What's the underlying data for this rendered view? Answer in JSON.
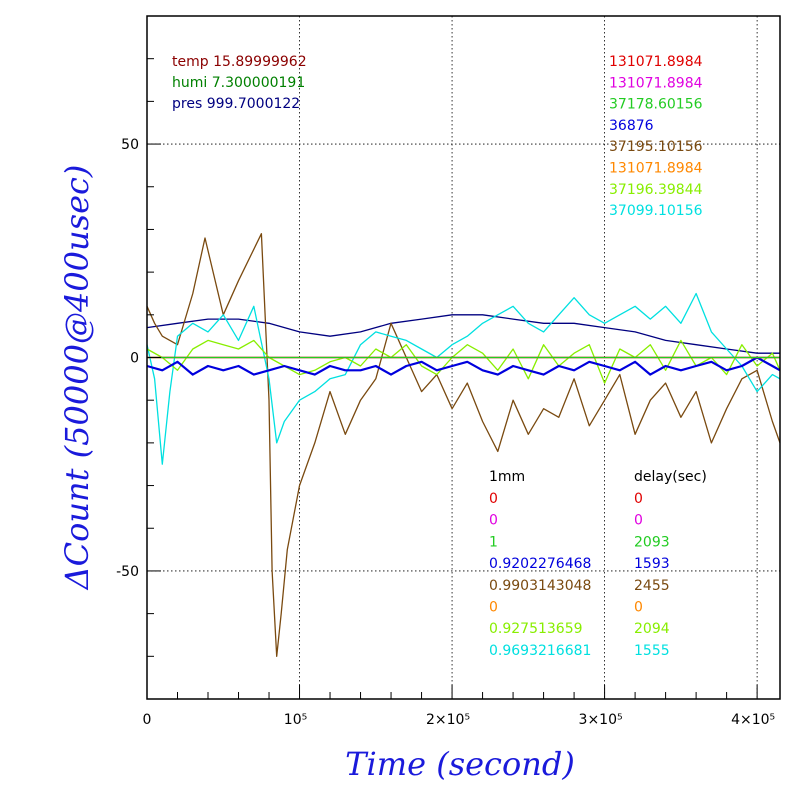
{
  "chart_data": {
    "type": "line",
    "xlabel": "Time (second)",
    "ylabel": "ΔCount (50000@400usec)",
    "xlim": [
      0,
      415000
    ],
    "ylim": [
      -80,
      80
    ],
    "x_ticks": [
      {
        "value": 0,
        "label": "0"
      },
      {
        "value": 100000,
        "label": "10⁵"
      },
      {
        "value": 200000,
        "label": "2×10⁵"
      },
      {
        "value": 300000,
        "label": "3×10⁵"
      },
      {
        "value": 400000,
        "label": "4×10⁵"
      }
    ],
    "y_ticks": [
      {
        "value": 50,
        "label": "50"
      },
      {
        "value": 0,
        "label": "0"
      },
      {
        "value": -50,
        "label": "-50"
      }
    ],
    "grid": true,
    "env": [
      {
        "text": "temp 15.89999962",
        "color": "#8b0000"
      },
      {
        "text": "humi 7.300000191",
        "color": "#008000"
      },
      {
        "text": "pres 999.7000122",
        "color": "#000080"
      }
    ],
    "header_values": [
      {
        "text": "131071.8984",
        "color": "#e00000"
      },
      {
        "text": "131071.8984",
        "color": "#e000e0"
      },
      {
        "text": "37178.60156",
        "color": "#22cc22"
      },
      {
        "text": "36876",
        "color": "#0000dd"
      },
      {
        "text": "37195.10156",
        "color": "#7a4a10"
      },
      {
        "text": "131071.8984",
        "color": "#ff8800"
      },
      {
        "text": "37196.39844",
        "color": "#88ee00"
      },
      {
        "text": "37099.10156",
        "color": "#00e0e0"
      }
    ],
    "table": {
      "col1_header": "1mm",
      "col2_header": "delay(sec)",
      "rows": [
        {
          "col1": "0",
          "col2": "0",
          "color": "#e00000"
        },
        {
          "col1": "0",
          "col2": "0",
          "color": "#e000e0"
        },
        {
          "col1": "1",
          "col2": "2093",
          "color": "#22cc22"
        },
        {
          "col1": "0.9202276468",
          "col2": "1593",
          "color": "#0000dd"
        },
        {
          "col1": "0.9903143048",
          "col2": "2455",
          "color": "#7a4a10"
        },
        {
          "col1": "0",
          "col2": "0",
          "color": "#ff8800"
        },
        {
          "col1": "0.927513659",
          "col2": "2094",
          "color": "#88ee00"
        },
        {
          "col1": "0.9693216681",
          "col2": "1555",
          "color": "#00e0e0"
        }
      ]
    },
    "series": [
      {
        "color": "#8b0000",
        "x": [
          0,
          15000,
          30000,
          45000,
          60000,
          75000,
          90000,
          105000,
          120000,
          135000,
          150000,
          165000,
          180000,
          195000,
          210000,
          225000,
          240000,
          255000,
          270000,
          285000,
          300000,
          315000,
          330000,
          345000,
          360000,
          375000,
          390000,
          405000,
          415000
        ],
        "y": [
          0,
          0,
          0,
          0,
          0,
          0,
          0,
          0,
          0,
          0,
          0,
          0,
          0,
          0,
          0,
          0,
          0,
          0,
          0,
          0,
          0,
          0,
          0,
          0,
          0,
          0,
          0,
          0,
          0
        ]
      },
      {
        "color": "#000080",
        "x": [
          0,
          20000,
          40000,
          60000,
          80000,
          100000,
          120000,
          140000,
          160000,
          180000,
          200000,
          220000,
          240000,
          260000,
          280000,
          300000,
          320000,
          340000,
          360000,
          380000,
          400000,
          415000
        ],
        "y": [
          7,
          8,
          9,
          9,
          8,
          6,
          5,
          6,
          8,
          9,
          10,
          10,
          9,
          8,
          8,
          7,
          6,
          4,
          3,
          2,
          1,
          1
        ]
      },
      {
        "color": "#7a4a10",
        "x": [
          0,
          5000,
          10000,
          20000,
          30000,
          38000,
          42000,
          50000,
          60000,
          75000,
          80000,
          82000,
          85000,
          88000,
          92000,
          100000,
          110000,
          120000,
          130000,
          140000,
          150000,
          160000,
          170000,
          180000,
          190000,
          200000,
          210000,
          220000,
          230000,
          240000,
          250000,
          260000,
          270000,
          280000,
          290000,
          300000,
          310000,
          320000,
          330000,
          340000,
          350000,
          360000,
          370000,
          380000,
          390000,
          400000,
          410000,
          415000
        ],
        "y": [
          12,
          8,
          5,
          3,
          15,
          28,
          22,
          10,
          18,
          29,
          -10,
          -50,
          -70,
          -60,
          -45,
          -30,
          -20,
          -8,
          -18,
          -10,
          -5,
          8,
          0,
          -8,
          -4,
          -12,
          -6,
          -15,
          -22,
          -10,
          -18,
          -12,
          -14,
          -5,
          -16,
          -10,
          -4,
          -18,
          -10,
          -6,
          -14,
          -8,
          -20,
          -12,
          -5,
          -3,
          -15,
          -20
        ]
      },
      {
        "color": "#00e0e0",
        "x": [
          0,
          5000,
          10000,
          15000,
          20000,
          30000,
          40000,
          50000,
          60000,
          70000,
          80000,
          85000,
          90000,
          100000,
          110000,
          120000,
          130000,
          140000,
          150000,
          160000,
          170000,
          180000,
          190000,
          200000,
          210000,
          220000,
          230000,
          240000,
          250000,
          260000,
          270000,
          280000,
          290000,
          300000,
          310000,
          320000,
          330000,
          340000,
          350000,
          360000,
          370000,
          380000,
          390000,
          400000,
          410000,
          415000
        ],
        "y": [
          3,
          -5,
          -25,
          -8,
          5,
          8,
          6,
          10,
          4,
          12,
          -5,
          -20,
          -15,
          -10,
          -8,
          -5,
          -4,
          3,
          6,
          5,
          4,
          2,
          0,
          3,
          5,
          8,
          10,
          12,
          8,
          6,
          10,
          14,
          10,
          8,
          10,
          12,
          9,
          12,
          8,
          15,
          6,
          2,
          -2,
          -8,
          -4,
          -5
        ]
      },
      {
        "color": "#88ee00",
        "x": [
          0,
          10000,
          20000,
          30000,
          40000,
          50000,
          60000,
          70000,
          80000,
          90000,
          100000,
          110000,
          120000,
          130000,
          140000,
          150000,
          160000,
          170000,
          180000,
          190000,
          200000,
          210000,
          220000,
          230000,
          240000,
          250000,
          260000,
          270000,
          280000,
          290000,
          300000,
          310000,
          320000,
          330000,
          340000,
          350000,
          360000,
          370000,
          380000,
          390000,
          400000,
          410000,
          415000
        ],
        "y": [
          2,
          0,
          -3,
          2,
          4,
          3,
          2,
          4,
          0,
          -2,
          -4,
          -3,
          -1,
          0,
          -2,
          2,
          0,
          3,
          -2,
          -4,
          0,
          3,
          1,
          -3,
          2,
          -5,
          3,
          -2,
          1,
          3,
          -6,
          2,
          0,
          3,
          -3,
          4,
          -2,
          0,
          -4,
          3,
          -2,
          1,
          -3
        ]
      },
      {
        "color": "#0000dd",
        "x": [
          0,
          10000,
          20000,
          30000,
          40000,
          50000,
          60000,
          70000,
          80000,
          90000,
          100000,
          110000,
          120000,
          130000,
          140000,
          150000,
          160000,
          170000,
          180000,
          190000,
          200000,
          210000,
          220000,
          230000,
          240000,
          250000,
          260000,
          270000,
          280000,
          290000,
          300000,
          310000,
          320000,
          330000,
          340000,
          350000,
          360000,
          370000,
          380000,
          390000,
          400000,
          410000,
          415000
        ],
        "y": [
          -2,
          -3,
          -1,
          -4,
          -2,
          -3,
          -2,
          -4,
          -3,
          -2,
          -3,
          -4,
          -2,
          -3,
          -3,
          -2,
          -4,
          -2,
          -1,
          -3,
          -2,
          -1,
          -3,
          -4,
          -2,
          -3,
          -4,
          -2,
          -3,
          -1,
          -2,
          -3,
          -1,
          -4,
          -2,
          -3,
          -2,
          -1,
          -3,
          -2,
          0,
          -2,
          -3
        ]
      },
      {
        "color": "#e000e0",
        "x": [
          0,
          415000
        ],
        "y": [
          0,
          0
        ]
      },
      {
        "color": "#e00000",
        "x": [
          0,
          415000
        ],
        "y": [
          0,
          0
        ]
      },
      {
        "color": "#ff8800",
        "x": [
          0,
          415000
        ],
        "y": [
          0,
          0
        ]
      },
      {
        "color": "#22cc22",
        "x": [
          0,
          415000
        ],
        "y": [
          0,
          0
        ]
      }
    ]
  }
}
